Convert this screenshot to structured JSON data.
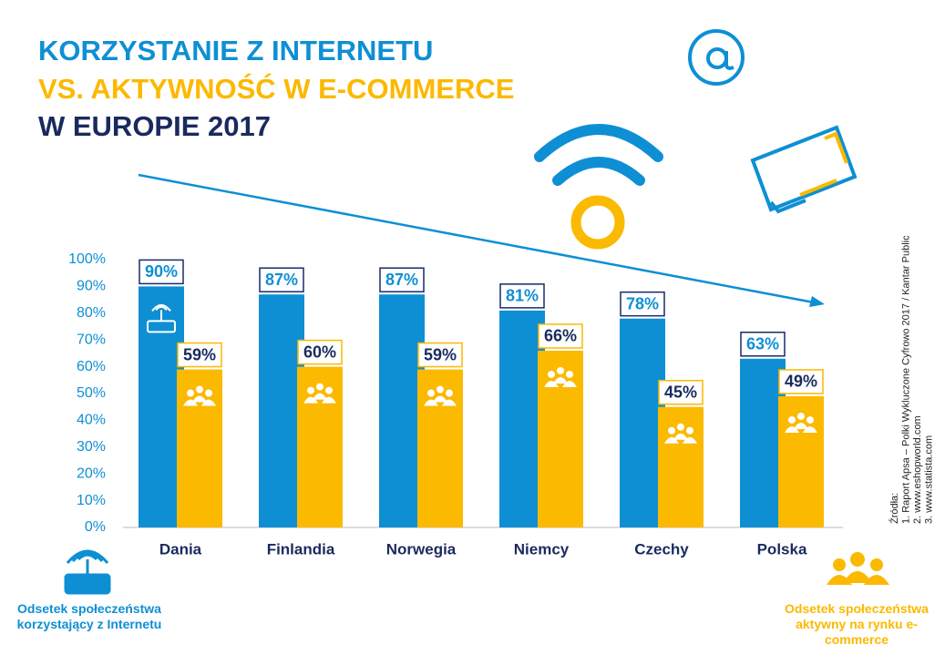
{
  "chart_data": {
    "type": "bar",
    "title": [
      "KORZYSTANIE Z INTERNETU",
      "VS. AKTYWNOŚĆ W E-COMMERCE",
      "W EUROPIE 2017"
    ],
    "categories": [
      "Dania",
      "Finlandia",
      "Norwegia",
      "Niemcy",
      "Czechy",
      "Polska"
    ],
    "series": [
      {
        "name": "Odsetek społeczeństwa korzystający z Internetu",
        "color": "#0e8fd4",
        "values": [
          90,
          87,
          87,
          81,
          78,
          63
        ],
        "value_labels": [
          "90%",
          "87%",
          "87%",
          "81%",
          "78%",
          "63%"
        ]
      },
      {
        "name": "Odsetek społeczeństwa aktywny na rynku e-commerce",
        "color": "#fbb900",
        "values": [
          59,
          60,
          59,
          66,
          45,
          49
        ],
        "value_labels": [
          "59%",
          "60%",
          "59%",
          "66%",
          "45%",
          "49%"
        ]
      }
    ],
    "ylim": [
      0,
      100
    ],
    "yticks": [
      {
        "value": 0,
        "label": "0%"
      },
      {
        "value": 10,
        "label": "10%"
      },
      {
        "value": 20,
        "label": "20%"
      },
      {
        "value": 30,
        "label": "30%"
      },
      {
        "value": 40,
        "label": "40%"
      },
      {
        "value": 50,
        "label": "50%"
      },
      {
        "value": 60,
        "label": "60%"
      },
      {
        "value": 70,
        "label": "70%"
      },
      {
        "value": 80,
        "label": "80%"
      },
      {
        "value": 90,
        "label": "90%"
      },
      {
        "value": 100,
        "label": "100%"
      }
    ],
    "sources": [
      "Źródła:",
      "1. Raport Apsa – Polki Wykluczone Cyfrowo 2017 / Kantar Public",
      "2. www.eshopworld.com",
      "3. www.statista.com"
    ]
  }
}
